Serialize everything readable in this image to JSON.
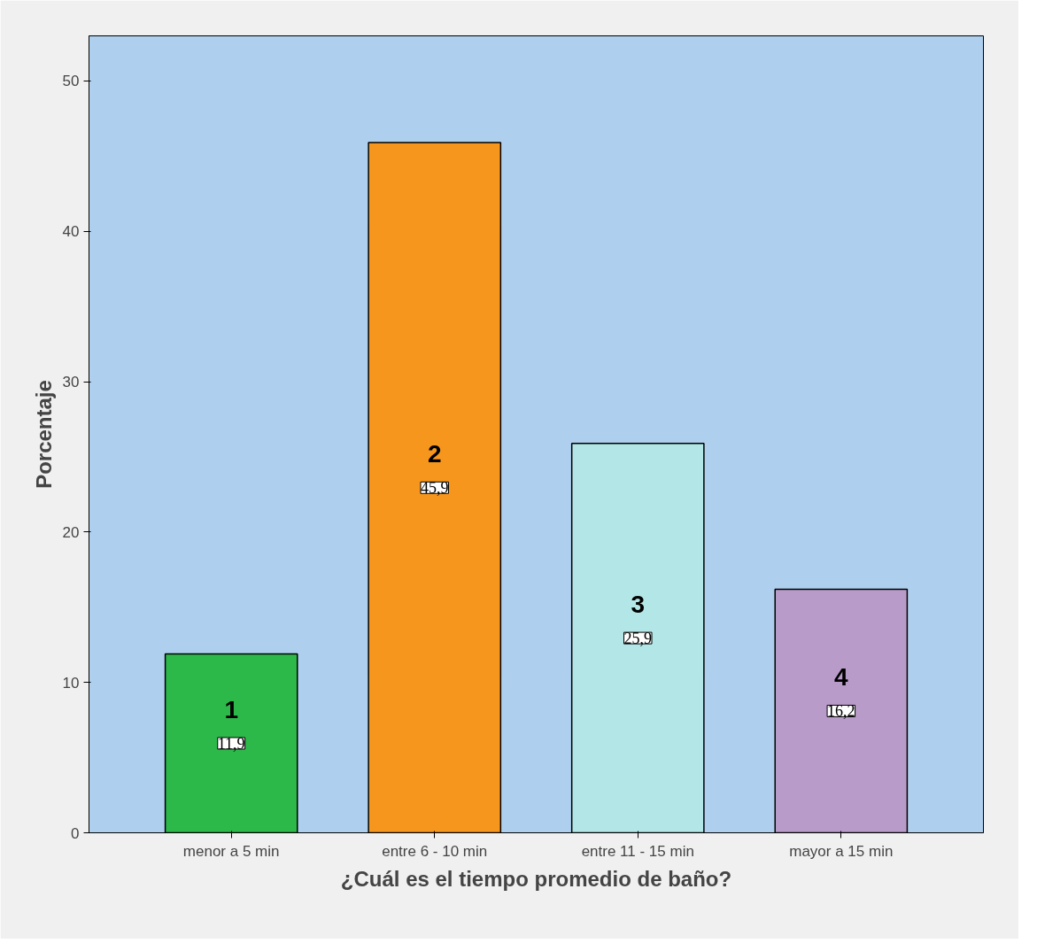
{
  "chart_data": {
    "type": "bar",
    "xlabel": "¿Cuál es el tiempo promedio de baño?",
    "ylabel": "Porcentaje",
    "categories": [
      "menor a 5 min",
      "entre 6 - 10 min",
      "entre 11 - 15 min",
      "mayor a 15 min"
    ],
    "values": [
      11.9,
      45.9,
      25.9,
      16.2
    ],
    "colors": [
      "#2db84a",
      "#f7961d",
      "#b3e6e6",
      "#b99bc9"
    ],
    "value_labels": [
      "11,9",
      "45,9",
      "25,9",
      "16,2"
    ],
    "annotations": [
      "1",
      "2",
      "3",
      "4"
    ],
    "ylim": [
      0,
      53
    ],
    "yticks": [
      0,
      10,
      20,
      30,
      40,
      50
    ],
    "grid": false
  }
}
